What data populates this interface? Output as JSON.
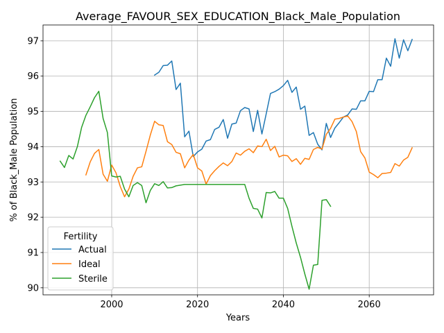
{
  "chart_data": {
    "type": "line",
    "title": "Average_FAVOUR_SEX_EDUCATION_Black_Male_Population",
    "xlabel": "Years",
    "ylabel": "% of Black_Male Population",
    "xlim": [
      1984,
      2075
    ],
    "ylim": [
      89.8,
      97.45
    ],
    "x_ticks": [
      2000,
      2020,
      2040,
      2060
    ],
    "y_ticks": [
      90,
      91,
      92,
      93,
      94,
      95,
      96,
      97
    ],
    "grid": true,
    "legend": {
      "title": "Fertility",
      "placement": "lower-left"
    },
    "series": [
      {
        "name": "Actual",
        "color": "#1f77b4",
        "x": [
          2010,
          2011,
          2012,
          2013,
          2014,
          2015,
          2016,
          2017,
          2018,
          2019,
          2020,
          2021,
          2022,
          2023,
          2024,
          2025,
          2026,
          2027,
          2028,
          2029,
          2030,
          2031,
          2032,
          2033,
          2034,
          2035,
          2036,
          2037,
          2038,
          2039,
          2040,
          2041,
          2042,
          2043,
          2044,
          2045,
          2046,
          2047,
          2048,
          2049,
          2050,
          2051,
          2052,
          2053,
          2054,
          2055,
          2056,
          2057,
          2058,
          2059,
          2060,
          2061,
          2062,
          2063,
          2064,
          2065,
          2066,
          2067,
          2068,
          2069,
          2070
        ],
        "values": [
          96.03,
          96.11,
          96.3,
          96.31,
          96.43,
          95.62,
          95.8,
          94.28,
          94.44,
          93.72,
          93.85,
          93.93,
          94.16,
          94.2,
          94.49,
          94.55,
          94.77,
          94.24,
          94.64,
          94.67,
          95.02,
          95.11,
          95.07,
          94.43,
          95.03,
          94.36,
          94.93,
          95.51,
          95.56,
          95.63,
          95.73,
          95.88,
          95.54,
          95.69,
          95.06,
          95.15,
          94.32,
          94.4,
          94.07,
          93.91,
          94.66,
          94.26,
          94.53,
          94.68,
          94.84,
          94.9,
          95.07,
          95.06,
          95.3,
          95.3,
          95.57,
          95.56,
          95.9,
          95.9,
          96.51,
          96.28,
          97.06,
          96.51,
          97.03,
          96.72,
          97.04
        ]
      },
      {
        "name": "Ideal",
        "color": "#ff7f0e",
        "x": [
          1994,
          1995,
          1996,
          1997,
          1998,
          1999,
          2000,
          2001,
          2002,
          2003,
          2004,
          2005,
          2006,
          2007,
          2008,
          2009,
          2010,
          2011,
          2012,
          2013,
          2014,
          2015,
          2016,
          2017,
          2018,
          2019,
          2020,
          2021,
          2022,
          2023,
          2024,
          2025,
          2026,
          2027,
          2028,
          2029,
          2030,
          2031,
          2032,
          2033,
          2034,
          2035,
          2036,
          2037,
          2038,
          2039,
          2040,
          2041,
          2042,
          2043,
          2044,
          2045,
          2046,
          2047,
          2048,
          2049,
          2050,
          2051,
          2052,
          2053,
          2054,
          2055,
          2056,
          2057,
          2058,
          2059,
          2060,
          2061,
          2062,
          2063,
          2064,
          2065,
          2066,
          2067,
          2068,
          2069,
          2070
        ],
        "values": [
          93.2,
          93.57,
          93.81,
          93.92,
          93.22,
          93.02,
          93.48,
          93.26,
          92.87,
          92.58,
          92.8,
          93.16,
          93.4,
          93.43,
          93.87,
          94.33,
          94.72,
          94.62,
          94.6,
          94.14,
          94.06,
          93.84,
          93.8,
          93.4,
          93.62,
          93.78,
          93.4,
          93.31,
          92.94,
          93.18,
          93.32,
          93.44,
          93.54,
          93.46,
          93.58,
          93.82,
          93.76,
          93.87,
          93.94,
          93.83,
          94.02,
          94.0,
          94.21,
          93.89,
          94.01,
          93.71,
          93.76,
          93.74,
          93.58,
          93.66,
          93.5,
          93.67,
          93.64,
          93.92,
          93.98,
          93.93,
          94.35,
          94.52,
          94.78,
          94.8,
          94.84,
          94.87,
          94.71,
          94.43,
          93.86,
          93.68,
          93.28,
          93.21,
          93.12,
          93.24,
          93.25,
          93.27,
          93.52,
          93.45,
          93.62,
          93.7,
          93.97
        ]
      },
      {
        "name": "Sterile",
        "color": "#2ca02c",
        "x": [
          1988,
          1989,
          1990,
          1991,
          1992,
          1993,
          1994,
          1995,
          1996,
          1997,
          1998,
          1999,
          2000,
          2001,
          2002,
          2003,
          2004,
          2005,
          2006,
          2007,
          2008,
          2009,
          2010,
          2011,
          2012,
          2013,
          2014,
          2015,
          2016,
          2017,
          2018,
          2019,
          2020,
          2021,
          2022,
          2023,
          2024,
          2025,
          2026,
          2027,
          2028,
          2029,
          2030,
          2031,
          2032,
          2033,
          2034,
          2035,
          2036,
          2037,
          2038,
          2039,
          2040,
          2041,
          2042,
          2043,
          2044,
          2045,
          2046,
          2047,
          2048,
          2049,
          2050,
          2051
        ],
        "values": [
          93.59,
          93.41,
          93.75,
          93.65,
          94.0,
          94.55,
          94.89,
          95.13,
          95.39,
          95.57,
          94.8,
          94.4,
          93.17,
          93.14,
          93.16,
          92.8,
          92.58,
          92.9,
          92.98,
          92.9,
          92.41,
          92.76,
          92.95,
          92.9,
          93.01,
          92.83,
          92.84,
          92.89,
          92.91,
          92.93,
          92.93,
          92.93,
          92.93,
          92.93,
          92.93,
          92.93,
          92.93,
          92.93,
          92.93,
          92.93,
          92.93,
          92.93,
          92.93,
          92.93,
          92.54,
          92.25,
          92.23,
          91.98,
          92.7,
          92.69,
          92.73,
          92.54,
          92.54,
          92.25,
          91.74,
          91.27,
          90.86,
          90.39,
          89.96,
          90.64,
          90.66,
          92.48,
          92.5,
          92.31
        ]
      }
    ]
  }
}
